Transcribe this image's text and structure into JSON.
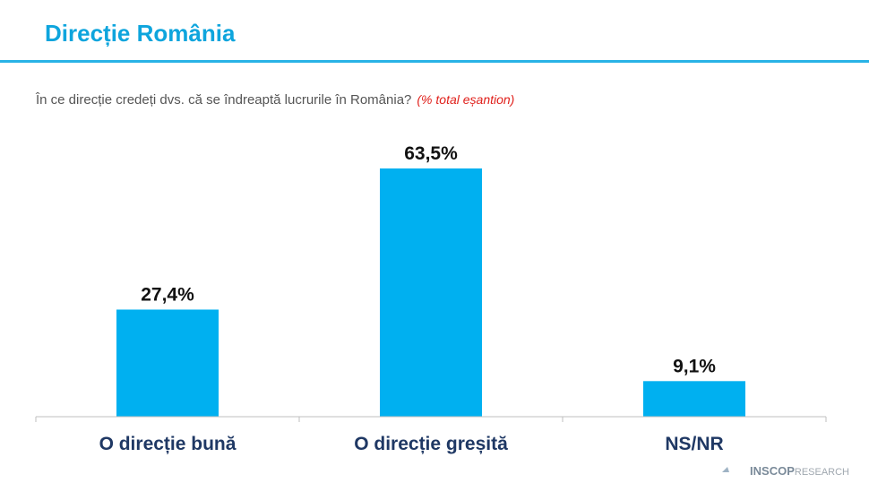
{
  "chart_data": {
    "type": "bar",
    "title": "Direcție România",
    "subtitle": "În ce direcție credeți dvs. că se îndreaptă lucrurile în România?",
    "note": "(% total eșantion)",
    "categories": [
      "O direcție bună",
      "O direcție greșită",
      "NS/NR"
    ],
    "values": [
      27.4,
      63.5,
      9.1
    ],
    "value_labels": [
      "27,4%",
      "63,5%",
      "9,1%"
    ],
    "color": "#00b0f0",
    "brand": {
      "name": "INSCOP",
      "suffix": "RESEARCH"
    }
  }
}
